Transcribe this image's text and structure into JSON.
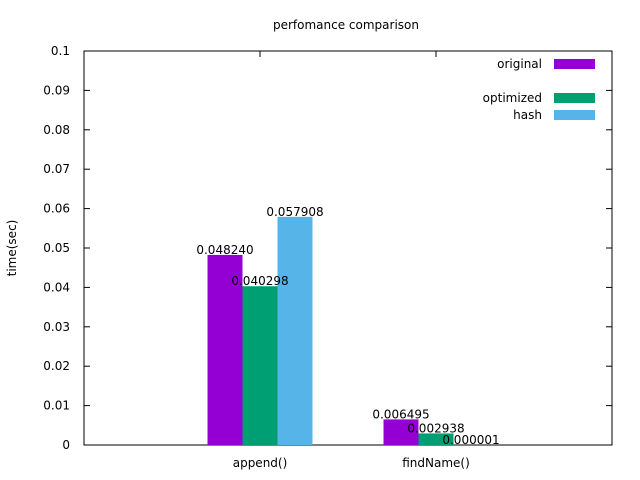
{
  "chart_data": {
    "type": "bar",
    "title": "perfomance comparison",
    "xlabel": "",
    "ylabel": "time(sec)",
    "ylim": [
      0,
      0.1
    ],
    "yticks": [
      0,
      0.01,
      0.02,
      0.03,
      0.04,
      0.05,
      0.06,
      0.07,
      0.08,
      0.09,
      0.1
    ],
    "ytick_labels": [
      "0",
      "0.01",
      "0.02",
      "0.03",
      "0.04",
      "0.05",
      "0.06",
      "0.07",
      "0.08",
      "0.09",
      "0.1"
    ],
    "categories": [
      "append()",
      "findName()"
    ],
    "series": [
      {
        "name": "original",
        "color": "#9400d3",
        "values": [
          0.04824,
          0.006495
        ],
        "labels": [
          "0.048240",
          "0.006495"
        ]
      },
      {
        "name": "optimized",
        "color": "#009e73",
        "values": [
          0.040298,
          0.002938
        ],
        "labels": [
          "0.040298",
          "0.002938"
        ]
      },
      {
        "name": "hash",
        "color": "#56b4e9",
        "values": [
          0.057908,
          1e-06
        ],
        "labels": [
          "0.057908",
          "0.000001"
        ]
      }
    ],
    "legend_position": "top-right",
    "grid": false
  }
}
